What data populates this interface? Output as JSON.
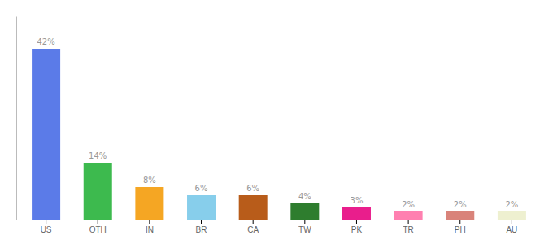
{
  "chart_data": {
    "type": "bar",
    "categories": [
      "US",
      "OTH",
      "IN",
      "BR",
      "CA",
      "TW",
      "PK",
      "TR",
      "PH",
      "AU"
    ],
    "values": [
      42,
      14,
      8,
      6,
      6,
      4,
      3,
      2,
      2,
      2
    ],
    "value_labels": [
      "42%",
      "14%",
      "8%",
      "6%",
      "6%",
      "4%",
      "3%",
      "2%",
      "2%",
      "2%"
    ],
    "colors": [
      "#5b7be8",
      "#3dba4e",
      "#f5a623",
      "#87ceeb",
      "#b85c1a",
      "#2e7d2e",
      "#e91e8c",
      "#ff80b0",
      "#d9837a",
      "#eef0d0"
    ],
    "ylim": [
      0,
      50
    ],
    "data_labels": true,
    "tick_labels": "x",
    "grid": false
  }
}
